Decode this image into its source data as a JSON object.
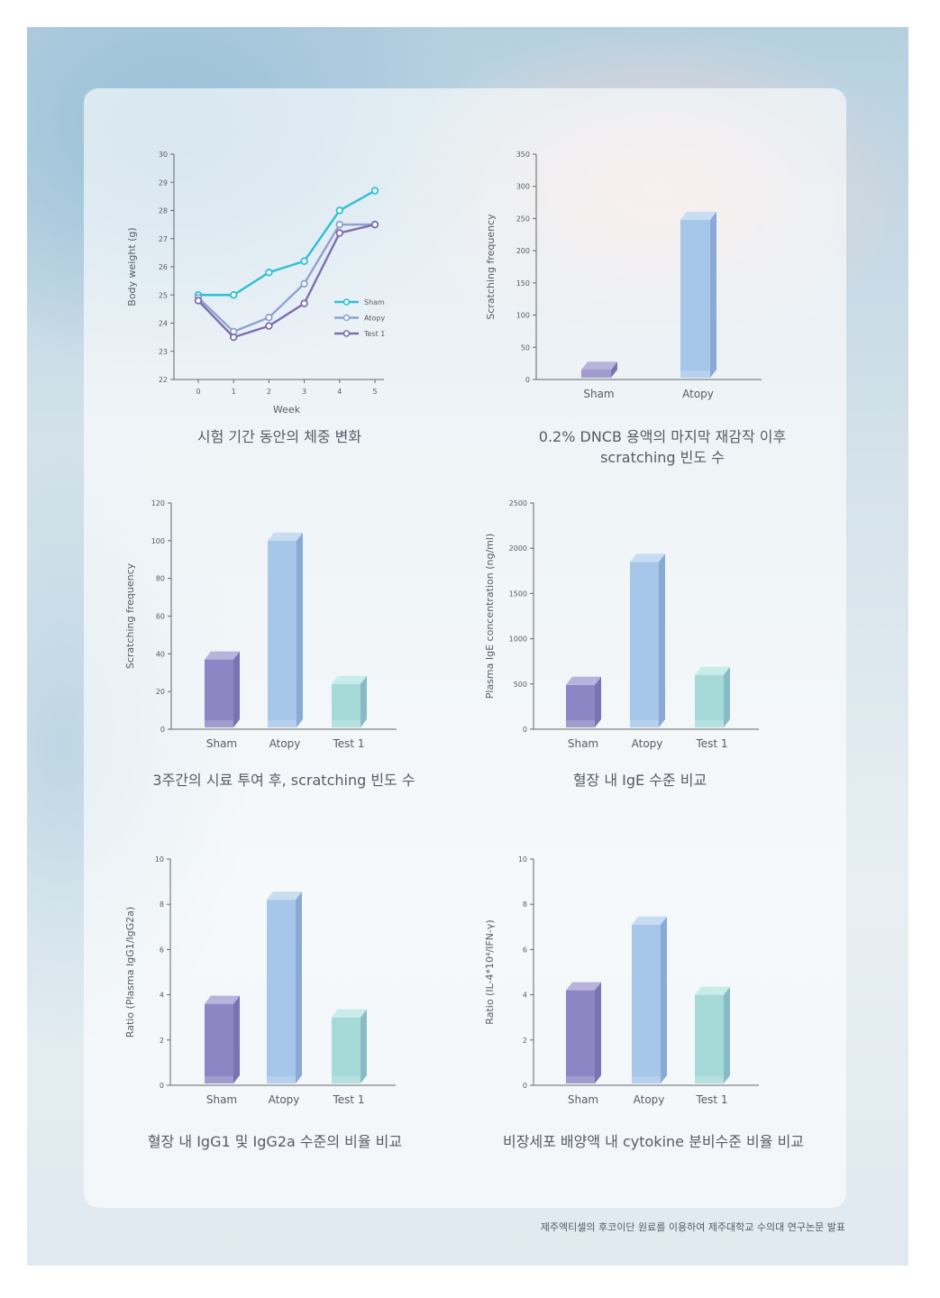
{
  "footer": "제주엑티셀의 후코이단 원료를 이용하여 제주대학교 수의대 연구논문 발표",
  "colors": {
    "sham_line": "#2ec0d2",
    "atopy_line": "#8ea2d2",
    "test1_line": "#7e6eae",
    "bar_sham_front": "#8e86c4",
    "bar_sham_top": "#b8b2dc",
    "bar_sham_side": "#7a72b2",
    "bar_atopy_front": "#a6c6ea",
    "bar_atopy_top": "#c8dcf2",
    "bar_atopy_side": "#8aaad6",
    "bar_test1_front": "#a6dad8",
    "bar_test1_top": "#c8ecea",
    "bar_test1_side": "#88bcc4",
    "axis": "#666666"
  },
  "chart_data": [
    {
      "type": "line",
      "caption": "시험 기간 동안의 체중 변화",
      "xlabel": "Week",
      "ylabel": "Body weight (g)",
      "x": [
        0,
        1,
        2,
        3,
        4,
        5
      ],
      "xticks": [
        "0",
        "1",
        "2",
        "3",
        "4",
        "5"
      ],
      "ylim": [
        22,
        30
      ],
      "yticks": [
        "22",
        "23",
        "24",
        "25",
        "26",
        "27",
        "28",
        "29",
        "30"
      ],
      "legend_position": "center-right",
      "series": [
        {
          "name": "Sham",
          "values": [
            25.0,
            25.0,
            25.8,
            26.2,
            28.0,
            28.7
          ]
        },
        {
          "name": "Atopy",
          "values": [
            24.9,
            23.7,
            24.2,
            25.4,
            27.5,
            27.5
          ]
        },
        {
          "name": "Test 1",
          "values": [
            24.8,
            23.5,
            23.9,
            24.7,
            27.2,
            27.5
          ]
        }
      ]
    },
    {
      "type": "bar",
      "caption": "0.2% DNCB 용액의 마지막 재감작 이후 scratching 빈도 수",
      "ylabel": "Scratching frequency",
      "categories": [
        "Sham",
        "Atopy"
      ],
      "values": [
        15,
        248
      ],
      "ylim": [
        0,
        350
      ],
      "yticks": [
        "0",
        "50",
        "100",
        "150",
        "200",
        "250",
        "300",
        "350"
      ]
    },
    {
      "type": "bar",
      "caption": "3주간의 시료 투여 후, scratching 빈도 수",
      "ylabel": "Scratching frequency",
      "categories": [
        "Sham",
        "Atopy",
        "Test 1"
      ],
      "values": [
        37,
        100,
        24
      ],
      "ylim": [
        0,
        120
      ],
      "yticks": [
        "0",
        "20",
        "40",
        "60",
        "80",
        "100",
        "120"
      ]
    },
    {
      "type": "bar",
      "caption": "혈장 내 IgE 수준 비교",
      "ylabel": "Plasma IgE concentration (ng/ml)",
      "categories": [
        "Sham",
        "Atopy",
        "Test 1"
      ],
      "values": [
        490,
        1850,
        600
      ],
      "ylim": [
        0,
        2500
      ],
      "yticks": [
        "0",
        "500",
        "1000",
        "1500",
        "2000",
        "2500"
      ]
    },
    {
      "type": "bar",
      "caption": "혈장 내 IgG1 및 IgG2a 수준의 비율 비교",
      "ylabel": "Ratio (Plasma IgG1/IgG2a)",
      "categories": [
        "Sham",
        "Atopy",
        "Test 1"
      ],
      "values": [
        3.6,
        8.2,
        3.0
      ],
      "ylim": [
        0,
        10
      ],
      "yticks": [
        "0",
        "2",
        "4",
        "6",
        "8",
        "10"
      ]
    },
    {
      "type": "bar",
      "caption": "비장세포 배양액 내 cytokine 분비수준 비율 비교",
      "ylabel": "Ratio (IL-4*10⁴/IFN-γ)",
      "categories": [
        "Sham",
        "Atopy",
        "Test 1"
      ],
      "values": [
        4.2,
        7.1,
        4.0
      ],
      "ylim": [
        0,
        10
      ],
      "yticks": [
        "0",
        "2",
        "4",
        "6",
        "8",
        "10"
      ]
    }
  ]
}
